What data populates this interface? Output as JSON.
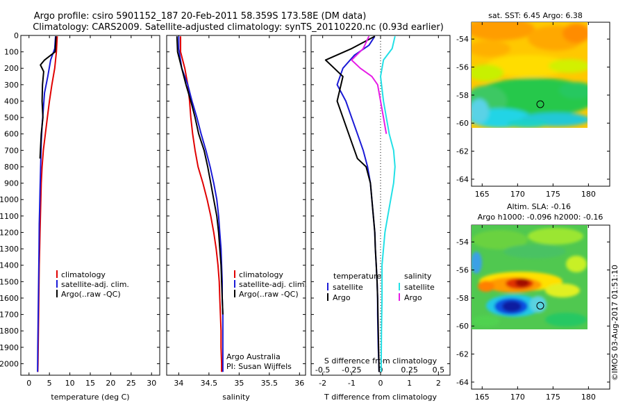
{
  "header": {
    "line1": "Argo profile: csiro 5901152_187 20-Feb-2011 58.359S 173.58E (DM data)",
    "line2": "Climatology: CARS2009. Satellite-adjusted climatology: synTS_20110220.nc (0.93d earlier)"
  },
  "side_stamp": "©IMOS 03-Aug-2017 01:51:10",
  "colors": {
    "climatology": "#e00000",
    "satellite": "#1a1ad6",
    "argo": "#000000",
    "sat_salinity": "#22e0e6",
    "argo_salinity": "#e61ce6"
  },
  "chart_data": [
    {
      "type": "line",
      "xlabel": "temperature (deg C)",
      "ylabel": "",
      "xlim": [
        -2,
        32
      ],
      "ylim": [
        2070,
        0
      ],
      "xticks": [
        0,
        5,
        10,
        15,
        20,
        25,
        30
      ],
      "yticks": [
        0,
        100,
        200,
        300,
        400,
        500,
        600,
        700,
        800,
        900,
        1000,
        1100,
        1200,
        1300,
        1400,
        1500,
        1600,
        1700,
        1800,
        1900,
        2000
      ],
      "legend": [
        "climatology",
        "satellite-adj. clim.",
        "Argo(..raw -QC)"
      ],
      "series": [
        {
          "name": "climatology",
          "color": "#e00000",
          "x": [
            6.9,
            6.7,
            6.3,
            5.6,
            5.0,
            4.5,
            4.0,
            3.5,
            3.2,
            3.0,
            2.9,
            2.8,
            2.7,
            2.6,
            2.5,
            2.45,
            2.4,
            2.35,
            2.3,
            2.25,
            2.2,
            2.15
          ],
          "y": [
            5,
            100,
            200,
            300,
            400,
            500,
            600,
            700,
            800,
            900,
            1000,
            1100,
            1200,
            1300,
            1400,
            1500,
            1600,
            1700,
            1800,
            1900,
            2000,
            2050
          ]
        },
        {
          "name": "satellite-adj. clim.",
          "color": "#1a1ad6",
          "x": [
            6.5,
            6.3,
            5.3,
            4.6,
            3.8,
            3.5,
            3.2,
            3.0,
            2.9,
            2.8,
            2.7,
            2.6,
            2.5,
            2.45,
            2.4,
            2.35,
            2.3,
            2.25,
            2.2,
            2.15,
            2.1
          ],
          "y": [
            5,
            80,
            150,
            250,
            350,
            450,
            550,
            650,
            750,
            850,
            950,
            1050,
            1150,
            1300,
            1400,
            1500,
            1600,
            1700,
            1800,
            1900,
            2050
          ]
        },
        {
          "name": "Argo(..raw -QC)",
          "color": "#000000",
          "x": [
            6.6,
            6.4,
            3.8,
            2.8,
            3.6,
            3.3,
            3.2,
            3.4,
            3.0,
            2.9,
            2.8,
            2.7
          ],
          "y": [
            5,
            100,
            150,
            180,
            220,
            300,
            400,
            500,
            600,
            650,
            700,
            750
          ]
        }
      ]
    },
    {
      "type": "line",
      "xlabel": "salinity",
      "xlim": [
        33.8,
        36.1
      ],
      "ylim": [
        2070,
        0
      ],
      "xticks": [
        34,
        34.5,
        35,
        35.5,
        36
      ],
      "legend": [
        "climatology",
        "satellite-adj. clim.",
        "Argo(..raw -QC)"
      ],
      "annotations": [
        "Argo Australia",
        "PI: Susan Wijffels"
      ],
      "series": [
        {
          "name": "climatology",
          "color": "#e00000",
          "x": [
            34.03,
            34.03,
            34.1,
            34.15,
            34.18,
            34.2,
            34.23,
            34.27,
            34.32,
            34.4,
            34.47,
            34.53,
            34.58,
            34.62,
            34.65,
            34.67,
            34.68,
            34.69,
            34.7,
            34.7,
            34.71,
            34.71
          ],
          "y": [
            5,
            100,
            200,
            300,
            400,
            500,
            600,
            700,
            800,
            900,
            1000,
            1100,
            1200,
            1300,
            1400,
            1500,
            1600,
            1700,
            1800,
            1900,
            2000,
            2050
          ]
        },
        {
          "name": "satellite-adj. clim.",
          "color": "#1a1ad6",
          "x": [
            34.0,
            34.0,
            34.05,
            34.15,
            34.22,
            34.3,
            34.37,
            34.45,
            34.52,
            34.58,
            34.63,
            34.66,
            34.68,
            34.7,
            34.71,
            34.72,
            34.72,
            34.73,
            34.73,
            34.73,
            34.73
          ],
          "y": [
            5,
            80,
            200,
            300,
            400,
            500,
            600,
            700,
            800,
            900,
            1000,
            1100,
            1200,
            1300,
            1400,
            1500,
            1600,
            1700,
            1800,
            1900,
            2050
          ]
        },
        {
          "name": "Argo(..raw -QC)",
          "color": "#000000",
          "x": [
            33.97,
            33.98,
            34.05,
            34.12,
            34.2,
            34.27,
            34.33,
            34.42,
            34.48,
            34.53,
            34.58,
            34.63,
            34.66,
            34.68,
            34.7,
            34.71,
            34.72,
            34.73
          ],
          "y": [
            5,
            100,
            200,
            300,
            400,
            500,
            600,
            700,
            800,
            900,
            1000,
            1100,
            1200,
            1300,
            1400,
            1500,
            1600,
            1700
          ]
        }
      ]
    },
    {
      "type": "line",
      "xlabel": "T difference from climatology",
      "xlabel_top": "S difference from climatology",
      "xlim": [
        -2.4,
        2.4
      ],
      "ylim": [
        2070,
        0
      ],
      "xticks": [
        -2,
        -1,
        0,
        1,
        2
      ],
      "xticks_top": [
        -0.5,
        -0.25,
        0,
        0.25,
        0.5
      ],
      "legend_headers": [
        "temperature",
        "salinity"
      ],
      "legend": [
        "satellite",
        "Argo",
        "satellite",
        "Argo"
      ],
      "series": [
        {
          "name": "satellite",
          "color": "#1a1ad6",
          "x": [
            -0.2,
            -0.4,
            -0.9,
            -1.3,
            -1.5,
            -1.2,
            -1.0,
            -0.8,
            -0.6,
            -0.45,
            -0.35,
            -0.3,
            -0.25,
            -0.2,
            -0.18,
            -0.15,
            -0.12,
            -0.1,
            -0.1,
            -0.08,
            -0.05
          ],
          "y": [
            5,
            60,
            120,
            200,
            300,
            400,
            500,
            600,
            700,
            800,
            900,
            1000,
            1100,
            1200,
            1300,
            1400,
            1500,
            1600,
            1700,
            1900,
            2050
          ]
        },
        {
          "name": "Argo",
          "color": "#000000",
          "x": [
            -0.2,
            -1.0,
            -1.9,
            -1.6,
            -1.3,
            -1.5,
            -1.3,
            -1.0,
            -0.8,
            -0.5,
            -0.35,
            -0.3,
            -0.25,
            -0.2,
            -0.18,
            -0.15,
            -0.12,
            -0.1,
            -0.08,
            -0.05
          ],
          "y": [
            5,
            80,
            150,
            200,
            250,
            400,
            500,
            650,
            750,
            800,
            900,
            1000,
            1100,
            1200,
            1300,
            1400,
            1500,
            1600,
            1800,
            2050
          ]
        },
        {
          "name": "satellite",
          "color": "#22e0e6",
          "x": [
            0.5,
            0.4,
            0.1,
            0.0,
            0.1,
            0.2,
            0.3,
            0.45,
            0.5,
            0.45,
            0.35,
            0.25,
            0.15,
            0.1,
            0.05,
            0.05,
            0.03,
            0.02
          ],
          "y": [
            5,
            80,
            150,
            250,
            400,
            500,
            600,
            700,
            800,
            900,
            1000,
            1100,
            1200,
            1300,
            1400,
            1600,
            1800,
            2050
          ]
        },
        {
          "name": "Argo",
          "color": "#e61ce6",
          "x": [
            -0.4,
            -0.6,
            -1.0,
            -0.7,
            -0.3,
            -0.1,
            0.0,
            0.1,
            0.2
          ],
          "y": [
            5,
            80,
            150,
            200,
            250,
            300,
            400,
            500,
            600
          ]
        }
      ]
    },
    {
      "type": "heatmap",
      "title": "sat. SST: 6.45  Argo: 6.38",
      "xlim": [
        163.5,
        183
      ],
      "ylim": [
        -64.5,
        -52.8
      ],
      "xticks": [
        165,
        170,
        175,
        180
      ],
      "yticks": [
        -54,
        -56,
        -58,
        -60,
        -62,
        -64
      ],
      "data_extent": {
        "lon": [
          163.5,
          180
        ],
        "lat": [
          -60,
          -52.8
        ]
      },
      "marker": {
        "lon": 173.58,
        "lat": -58.36
      }
    },
    {
      "type": "heatmap",
      "title": "Altim. SLA: -0.16",
      "subtitle": "Argo h1000: -0.096  h2000: -0.16",
      "xlim": [
        163.5,
        183
      ],
      "ylim": [
        -64.5,
        -52.8
      ],
      "xticks": [
        165,
        170,
        175,
        180
      ],
      "yticks": [
        -54,
        -56,
        -58,
        -60,
        -62,
        -64
      ],
      "data_extent": {
        "lon": [
          163.5,
          180
        ],
        "lat": [
          -60,
          -52.8
        ]
      },
      "marker": {
        "lon": 173.58,
        "lat": -58.36
      }
    }
  ]
}
